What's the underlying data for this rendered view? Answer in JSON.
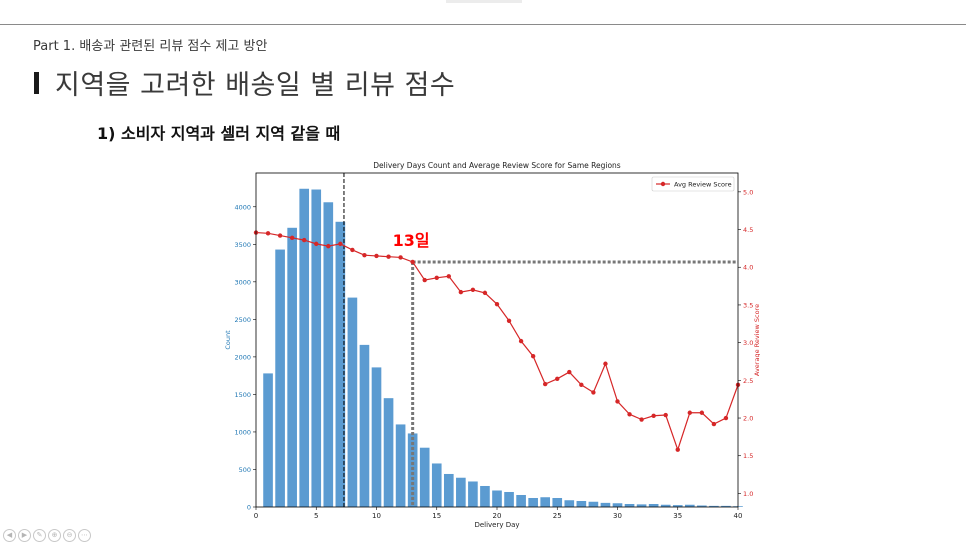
{
  "slide": {
    "part_label": "Part 1. 배송과 관련된 리뷰 점수 제고 방안",
    "title": "지역을 고려한 배송일 별 리뷰 점수",
    "subtitle": "1) 소비자 지역과 셀러 지역 같을 때"
  },
  "nav_icons": [
    "◀",
    "▶",
    "✎",
    "⊕",
    "⊖",
    "⋯"
  ],
  "chart_data": {
    "type": "bar",
    "title": "Delivery Days Count and Average Review Score for Same Regions",
    "xlabel": "Delivery Day",
    "ylabel": "Count",
    "y2label": "Average Review Score",
    "xlim": [
      0,
      40
    ],
    "ylim": [
      0,
      4450
    ],
    "y2lim": [
      0.82,
      5.25
    ],
    "xticks": [
      0,
      5,
      10,
      15,
      20,
      25,
      30,
      35,
      40
    ],
    "yticks": [
      0,
      500,
      1000,
      1500,
      2000,
      2500,
      3000,
      3500,
      4000
    ],
    "y2ticks": [
      1.0,
      1.5,
      2.0,
      2.5,
      3.0,
      3.5,
      4.0,
      4.5,
      5.0
    ],
    "bar_color": "#5b9bd1",
    "line_color": "#d62728",
    "left_axis_color": "#1f77b4",
    "annotation_color": "#ff0000",
    "bars": {
      "x": [
        1,
        2,
        3,
        4,
        5,
        6,
        7,
        8,
        9,
        10,
        11,
        12,
        13,
        14,
        15,
        16,
        17,
        18,
        19,
        20,
        21,
        22,
        23,
        24,
        25,
        26,
        27,
        28,
        29,
        30,
        31,
        32,
        33,
        34,
        35,
        36,
        37,
        38,
        39,
        40
      ],
      "values": [
        1780,
        3430,
        3720,
        4240,
        4230,
        4060,
        3800,
        2790,
        2160,
        1860,
        1450,
        1100,
        980,
        790,
        580,
        440,
        390,
        340,
        280,
        220,
        200,
        160,
        120,
        130,
        120,
        90,
        80,
        70,
        55,
        50,
        40,
        35,
        40,
        30,
        25,
        30,
        20,
        15,
        15,
        10
      ]
    },
    "line": {
      "name": "Avg Review Score",
      "x": [
        0,
        1,
        2,
        3,
        4,
        5,
        6,
        7,
        8,
        9,
        10,
        11,
        12,
        13,
        14,
        15,
        16,
        17,
        18,
        19,
        20,
        21,
        22,
        23,
        24,
        25,
        26,
        27,
        28,
        29,
        30,
        31,
        32,
        33,
        34,
        35,
        36,
        37,
        38,
        39,
        40
      ],
      "values": [
        4.46,
        4.45,
        4.42,
        4.39,
        4.36,
        4.31,
        4.28,
        4.31,
        4.23,
        4.16,
        4.15,
        4.14,
        4.13,
        4.07,
        3.83,
        3.86,
        3.88,
        3.67,
        3.7,
        3.66,
        3.51,
        3.29,
        3.02,
        2.82,
        2.45,
        2.52,
        2.61,
        2.44,
        2.34,
        2.72,
        2.22,
        2.05,
        1.98,
        2.03,
        2.04,
        1.58,
        2.07,
        2.07,
        1.92,
        2.0,
        2.44
      ]
    },
    "mean_line_x": 7.3,
    "threshold": {
      "x": 13,
      "y": 4.07
    },
    "annotation": "13일",
    "legend_position": "top-right",
    "grid": false
  }
}
